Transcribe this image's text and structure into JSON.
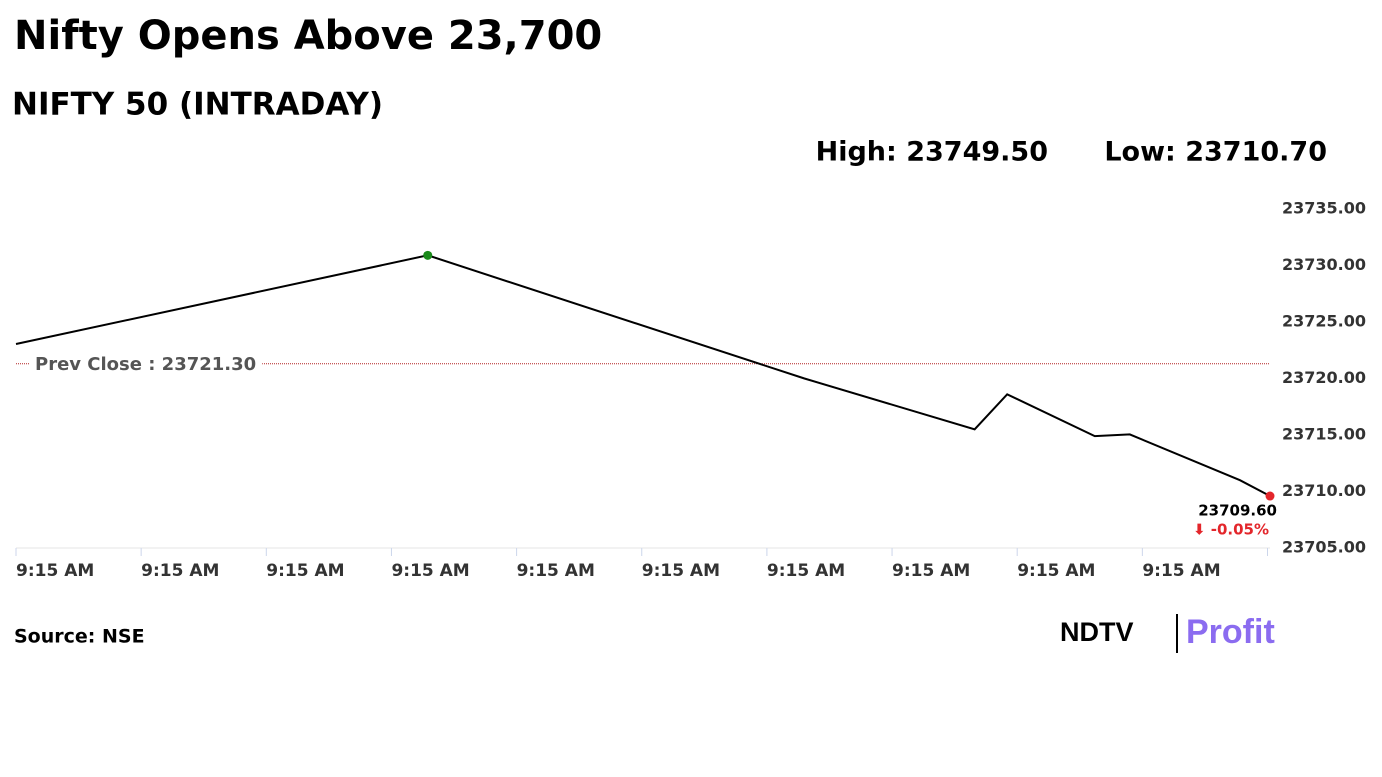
{
  "chart_data": {
    "type": "line",
    "title": "Nifty Opens Above 23,700",
    "subtitle": "NIFTY 50 (INTRADAY)",
    "high_label": "High: 23749.50",
    "low_label": "Low: 23710.70",
    "x": [
      0,
      3.29,
      6.3,
      7.66,
      7.92,
      8.62,
      8.9,
      9.78,
      10.02
    ],
    "series": [
      {
        "color": "#000000",
        "values": [
          23723.05,
          23730.9,
          23720.0,
          23715.5,
          23718.6,
          23714.9,
          23715.05,
          23711.0,
          23709.6
        ],
        "value_labels": [
          null,
          null,
          null,
          null,
          null,
          null,
          null,
          null,
          "23709.60"
        ],
        "point_colors": [
          null,
          "#1a8a1a",
          null,
          null,
          null,
          null,
          null,
          null,
          "#e3262b"
        ]
      }
    ],
    "change_label": "⬇ -0.05%",
    "change_color": "#e3262b",
    "reference_line": {
      "value": 23721.3,
      "label": "Prev Close : 23721.30",
      "color": "#b22222"
    },
    "xlim": [
      0,
      10.02
    ],
    "xticks": [
      {
        "value": 0,
        "label": "9:15 AM"
      },
      {
        "value": 1,
        "label": "9:15 AM"
      },
      {
        "value": 2,
        "label": "9:15 AM"
      },
      {
        "value": 3,
        "label": "9:15 AM"
      },
      {
        "value": 4,
        "label": "9:15 AM"
      },
      {
        "value": 5,
        "label": "9:15 AM"
      },
      {
        "value": 6,
        "label": "9:15 AM"
      },
      {
        "value": 7,
        "label": "9:15 AM"
      },
      {
        "value": 8,
        "label": "9:15 AM"
      },
      {
        "value": 9,
        "label": "9:15 AM"
      },
      {
        "value": 10,
        "label": null
      }
    ],
    "ylim": [
      23705,
      23735
    ],
    "yticks": [
      {
        "value": 23705,
        "label": "23705.00"
      },
      {
        "value": 23710,
        "label": "23710.00"
      },
      {
        "value": 23715,
        "label": "23715.00"
      },
      {
        "value": 23720,
        "label": "23720.00"
      },
      {
        "value": 23725,
        "label": "23725.00"
      },
      {
        "value": 23730,
        "label": "23730.00"
      },
      {
        "value": 23735,
        "label": "23735.00"
      }
    ],
    "source": "Source: NSE",
    "logo": {
      "left": "NDTV",
      "right": "Profit"
    }
  }
}
